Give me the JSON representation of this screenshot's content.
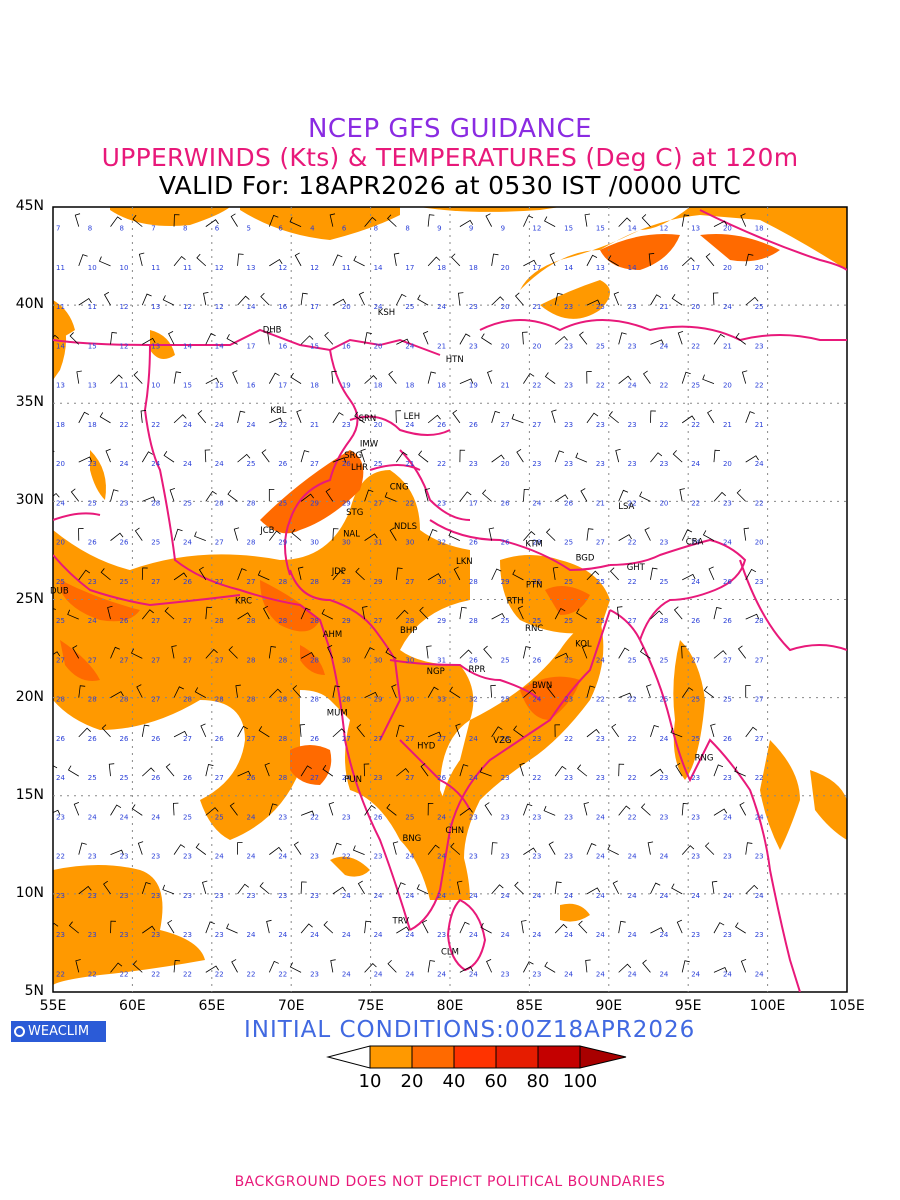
{
  "header": {
    "title": "NCEP GFS GUIDANCE",
    "subtitle": "UPPERWINDS (Kts) & TEMPERATURES (Deg C) at 120m",
    "valid": "VALID For: 18APR2026 at 0530 IST /0000 UTC"
  },
  "map": {
    "lat_labels": [
      "45N",
      "40N",
      "35N",
      "30N",
      "25N",
      "20N",
      "15N",
      "10N",
      "5N"
    ],
    "lon_labels": [
      "55E",
      "60E",
      "65E",
      "70E",
      "75E",
      "80E",
      "85E",
      "90E",
      "95E",
      "100E",
      "105E"
    ],
    "stations": [
      {
        "code": "KSH",
        "lon": 76.0,
        "lat": 39.5
      },
      {
        "code": "DHB",
        "lon": 68.8,
        "lat": 38.6
      },
      {
        "code": "HTN",
        "lon": 80.3,
        "lat": 37.1
      },
      {
        "code": "KBL",
        "lon": 69.2,
        "lat": 34.5
      },
      {
        "code": "SRN",
        "lon": 74.8,
        "lat": 34.1
      },
      {
        "code": "LEH",
        "lon": 77.6,
        "lat": 34.2
      },
      {
        "code": "IMW",
        "lon": 74.9,
        "lat": 32.8
      },
      {
        "code": "SRG",
        "lon": 73.9,
        "lat": 32.2
      },
      {
        "code": "LHR",
        "lon": 74.3,
        "lat": 31.6
      },
      {
        "code": "CNG",
        "lon": 76.8,
        "lat": 30.6
      },
      {
        "code": "STG",
        "lon": 74.0,
        "lat": 29.3
      },
      {
        "code": "JCB",
        "lon": 68.5,
        "lat": 28.4
      },
      {
        "code": "NAL",
        "lon": 73.8,
        "lat": 28.2
      },
      {
        "code": "NDLS",
        "lon": 77.2,
        "lat": 28.6
      },
      {
        "code": "LSA",
        "lon": 91.1,
        "lat": 29.6
      },
      {
        "code": "KTM",
        "lon": 85.3,
        "lat": 27.7
      },
      {
        "code": "CBA",
        "lon": 95.4,
        "lat": 27.8
      },
      {
        "code": "BGD",
        "lon": 88.5,
        "lat": 27.0
      },
      {
        "code": "GHT",
        "lon": 91.7,
        "lat": 26.5
      },
      {
        "code": "JDP",
        "lon": 73.0,
        "lat": 26.3
      },
      {
        "code": "LKN",
        "lon": 80.9,
        "lat": 26.8
      },
      {
        "code": "PTN",
        "lon": 85.3,
        "lat": 25.6
      },
      {
        "code": "DUB",
        "lon": 55.4,
        "lat": 25.3
      },
      {
        "code": "KRC",
        "lon": 67.0,
        "lat": 24.8
      },
      {
        "code": "RTH",
        "lon": 84.1,
        "lat": 24.8
      },
      {
        "code": "BHP",
        "lon": 77.4,
        "lat": 23.3
      },
      {
        "code": "AHM",
        "lon": 72.6,
        "lat": 23.1
      },
      {
        "code": "RNC",
        "lon": 85.3,
        "lat": 23.4
      },
      {
        "code": "KOL",
        "lon": 88.4,
        "lat": 22.6
      },
      {
        "code": "NGP",
        "lon": 79.1,
        "lat": 21.2
      },
      {
        "code": "RPR",
        "lon": 81.7,
        "lat": 21.3
      },
      {
        "code": "BWN",
        "lon": 85.8,
        "lat": 20.5
      },
      {
        "code": "MUM",
        "lon": 72.9,
        "lat": 19.1
      },
      {
        "code": "HYD",
        "lon": 78.5,
        "lat": 17.4
      },
      {
        "code": "VZG",
        "lon": 83.3,
        "lat": 17.7
      },
      {
        "code": "RNG",
        "lon": 96.0,
        "lat": 16.8
      },
      {
        "code": "PUN",
        "lon": 73.9,
        "lat": 15.7
      },
      {
        "code": "CHN",
        "lon": 80.3,
        "lat": 13.1
      },
      {
        "code": "BNG",
        "lon": 77.6,
        "lat": 12.7
      },
      {
        "code": "TRV",
        "lon": 76.9,
        "lat": 8.5
      },
      {
        "code": "CLM",
        "lon": 80.0,
        "lat": 6.9
      }
    ],
    "temperature_grid": {
      "lon_start": 55,
      "lon_step": 2,
      "lat_start": 44,
      "lat_step": -2,
      "rows": [
        [
          7,
          8,
          8,
          7,
          8,
          6,
          5,
          6,
          4,
          6,
          8,
          8,
          9,
          9,
          9,
          12,
          15,
          15,
          14,
          12,
          13,
          20,
          18
        ],
        [
          11,
          10,
          10,
          11,
          11,
          12,
          13,
          12,
          12,
          11,
          14,
          17,
          18,
          18,
          20,
          17,
          14,
          13,
          14,
          16,
          17,
          20,
          20
        ],
        [
          11,
          11,
          12,
          13,
          12,
          12,
          14,
          16,
          17,
          20,
          24,
          25,
          24,
          23,
          20,
          21,
          23,
          25,
          23,
          21,
          20,
          24,
          25
        ],
        [
          14,
          15,
          12,
          13,
          14,
          14,
          17,
          16,
          15,
          16,
          20,
          24,
          21,
          23,
          20,
          20,
          23,
          25,
          23,
          24,
          22,
          21,
          23
        ],
        [
          13,
          13,
          11,
          10,
          15,
          15,
          16,
          17,
          18,
          19,
          18,
          18,
          18,
          19,
          21,
          22,
          23,
          22,
          24,
          22,
          25,
          20,
          22
        ],
        [
          18,
          18,
          22,
          22,
          24,
          24,
          24,
          22,
          21,
          23,
          20,
          24,
          26,
          26,
          27,
          27,
          23,
          23,
          23,
          22,
          22,
          21,
          21
        ],
        [
          20,
          23,
          24,
          24,
          24,
          24,
          25,
          26,
          27,
          26,
          25,
          21,
          22,
          23,
          20,
          23,
          23,
          23,
          23,
          23,
          24,
          20,
          24
        ],
        [
          24,
          25,
          23,
          28,
          25,
          28,
          28,
          25,
          29,
          29,
          27,
          22,
          23,
          17,
          26,
          24,
          26,
          21,
          22,
          20,
          22,
          23,
          22
        ],
        [
          20,
          26,
          26,
          25,
          24,
          27,
          28,
          29,
          30,
          30,
          31,
          30,
          32,
          26,
          26,
          28,
          25,
          27,
          22,
          23,
          24,
          24,
          20
        ],
        [
          25,
          23,
          25,
          27,
          26,
          27,
          27,
          28,
          28,
          29,
          29,
          27,
          30,
          28,
          29,
          25,
          25,
          25,
          22,
          25,
          24,
          26,
          23
        ],
        [
          25,
          24,
          26,
          27,
          27,
          28,
          28,
          28,
          28,
          29,
          27,
          28,
          29,
          28,
          25,
          25,
          25,
          25,
          27,
          28,
          26,
          26,
          28
        ],
        [
          27,
          27,
          27,
          27,
          27,
          27,
          28,
          28,
          28,
          30,
          30,
          30,
          31,
          26,
          25,
          26,
          25,
          24,
          25,
          25,
          27,
          27,
          27
        ],
        [
          28,
          28,
          28,
          27,
          28,
          28,
          28,
          28,
          28,
          28,
          29,
          30,
          33,
          32,
          25,
          24,
          23,
          22,
          22,
          25,
          25,
          25,
          27
        ],
        [
          26,
          26,
          26,
          26,
          27,
          26,
          27,
          28,
          26,
          27,
          27,
          27,
          27,
          24,
          23,
          23,
          22,
          23,
          22,
          24,
          25,
          26,
          27
        ],
        [
          24,
          25,
          25,
          26,
          26,
          27,
          26,
          28,
          27,
          24,
          23,
          27,
          26,
          24,
          23,
          22,
          23,
          23,
          22,
          23,
          23,
          23,
          22
        ],
        [
          23,
          24,
          24,
          24,
          25,
          25,
          24,
          23,
          22,
          23,
          26,
          25,
          24,
          23,
          23,
          23,
          23,
          24,
          22,
          23,
          23,
          24,
          24
        ],
        [
          22,
          23,
          23,
          23,
          23,
          24,
          24,
          24,
          23,
          22,
          23,
          24,
          24,
          23,
          23,
          23,
          23,
          24,
          24,
          24,
          23,
          23,
          23
        ],
        [
          23,
          23,
          23,
          23,
          23,
          23,
          23,
          23,
          23,
          24,
          24,
          24,
          24,
          24,
          24,
          24,
          24,
          24,
          24,
          24,
          24,
          24,
          24
        ],
        [
          23,
          23,
          23,
          23,
          23,
          23,
          24,
          24,
          24,
          24,
          24,
          24,
          23,
          24,
          24,
          24,
          24,
          24,
          24,
          24,
          23,
          23,
          23
        ],
        [
          22,
          22,
          22,
          22,
          22,
          22,
          22,
          22,
          23,
          24,
          24,
          24,
          24,
          24,
          23,
          23,
          24,
          24,
          24,
          24,
          24,
          24,
          24
        ]
      ]
    }
  },
  "branding": {
    "badge": "WEACLIM"
  },
  "init": "INITIAL CONDITIONS:00Z18APR2026",
  "legend": {
    "labels": [
      "10",
      "20",
      "40",
      "60",
      "80",
      "100"
    ],
    "colors": [
      "#ffffff",
      "#ff9900",
      "#ff6a00",
      "#ff3300",
      "#e61c00",
      "#c40000",
      "#a80000"
    ]
  },
  "footer": "BACKGROUND DOES NOT DEPICT POLITICAL BOUNDARIES"
}
